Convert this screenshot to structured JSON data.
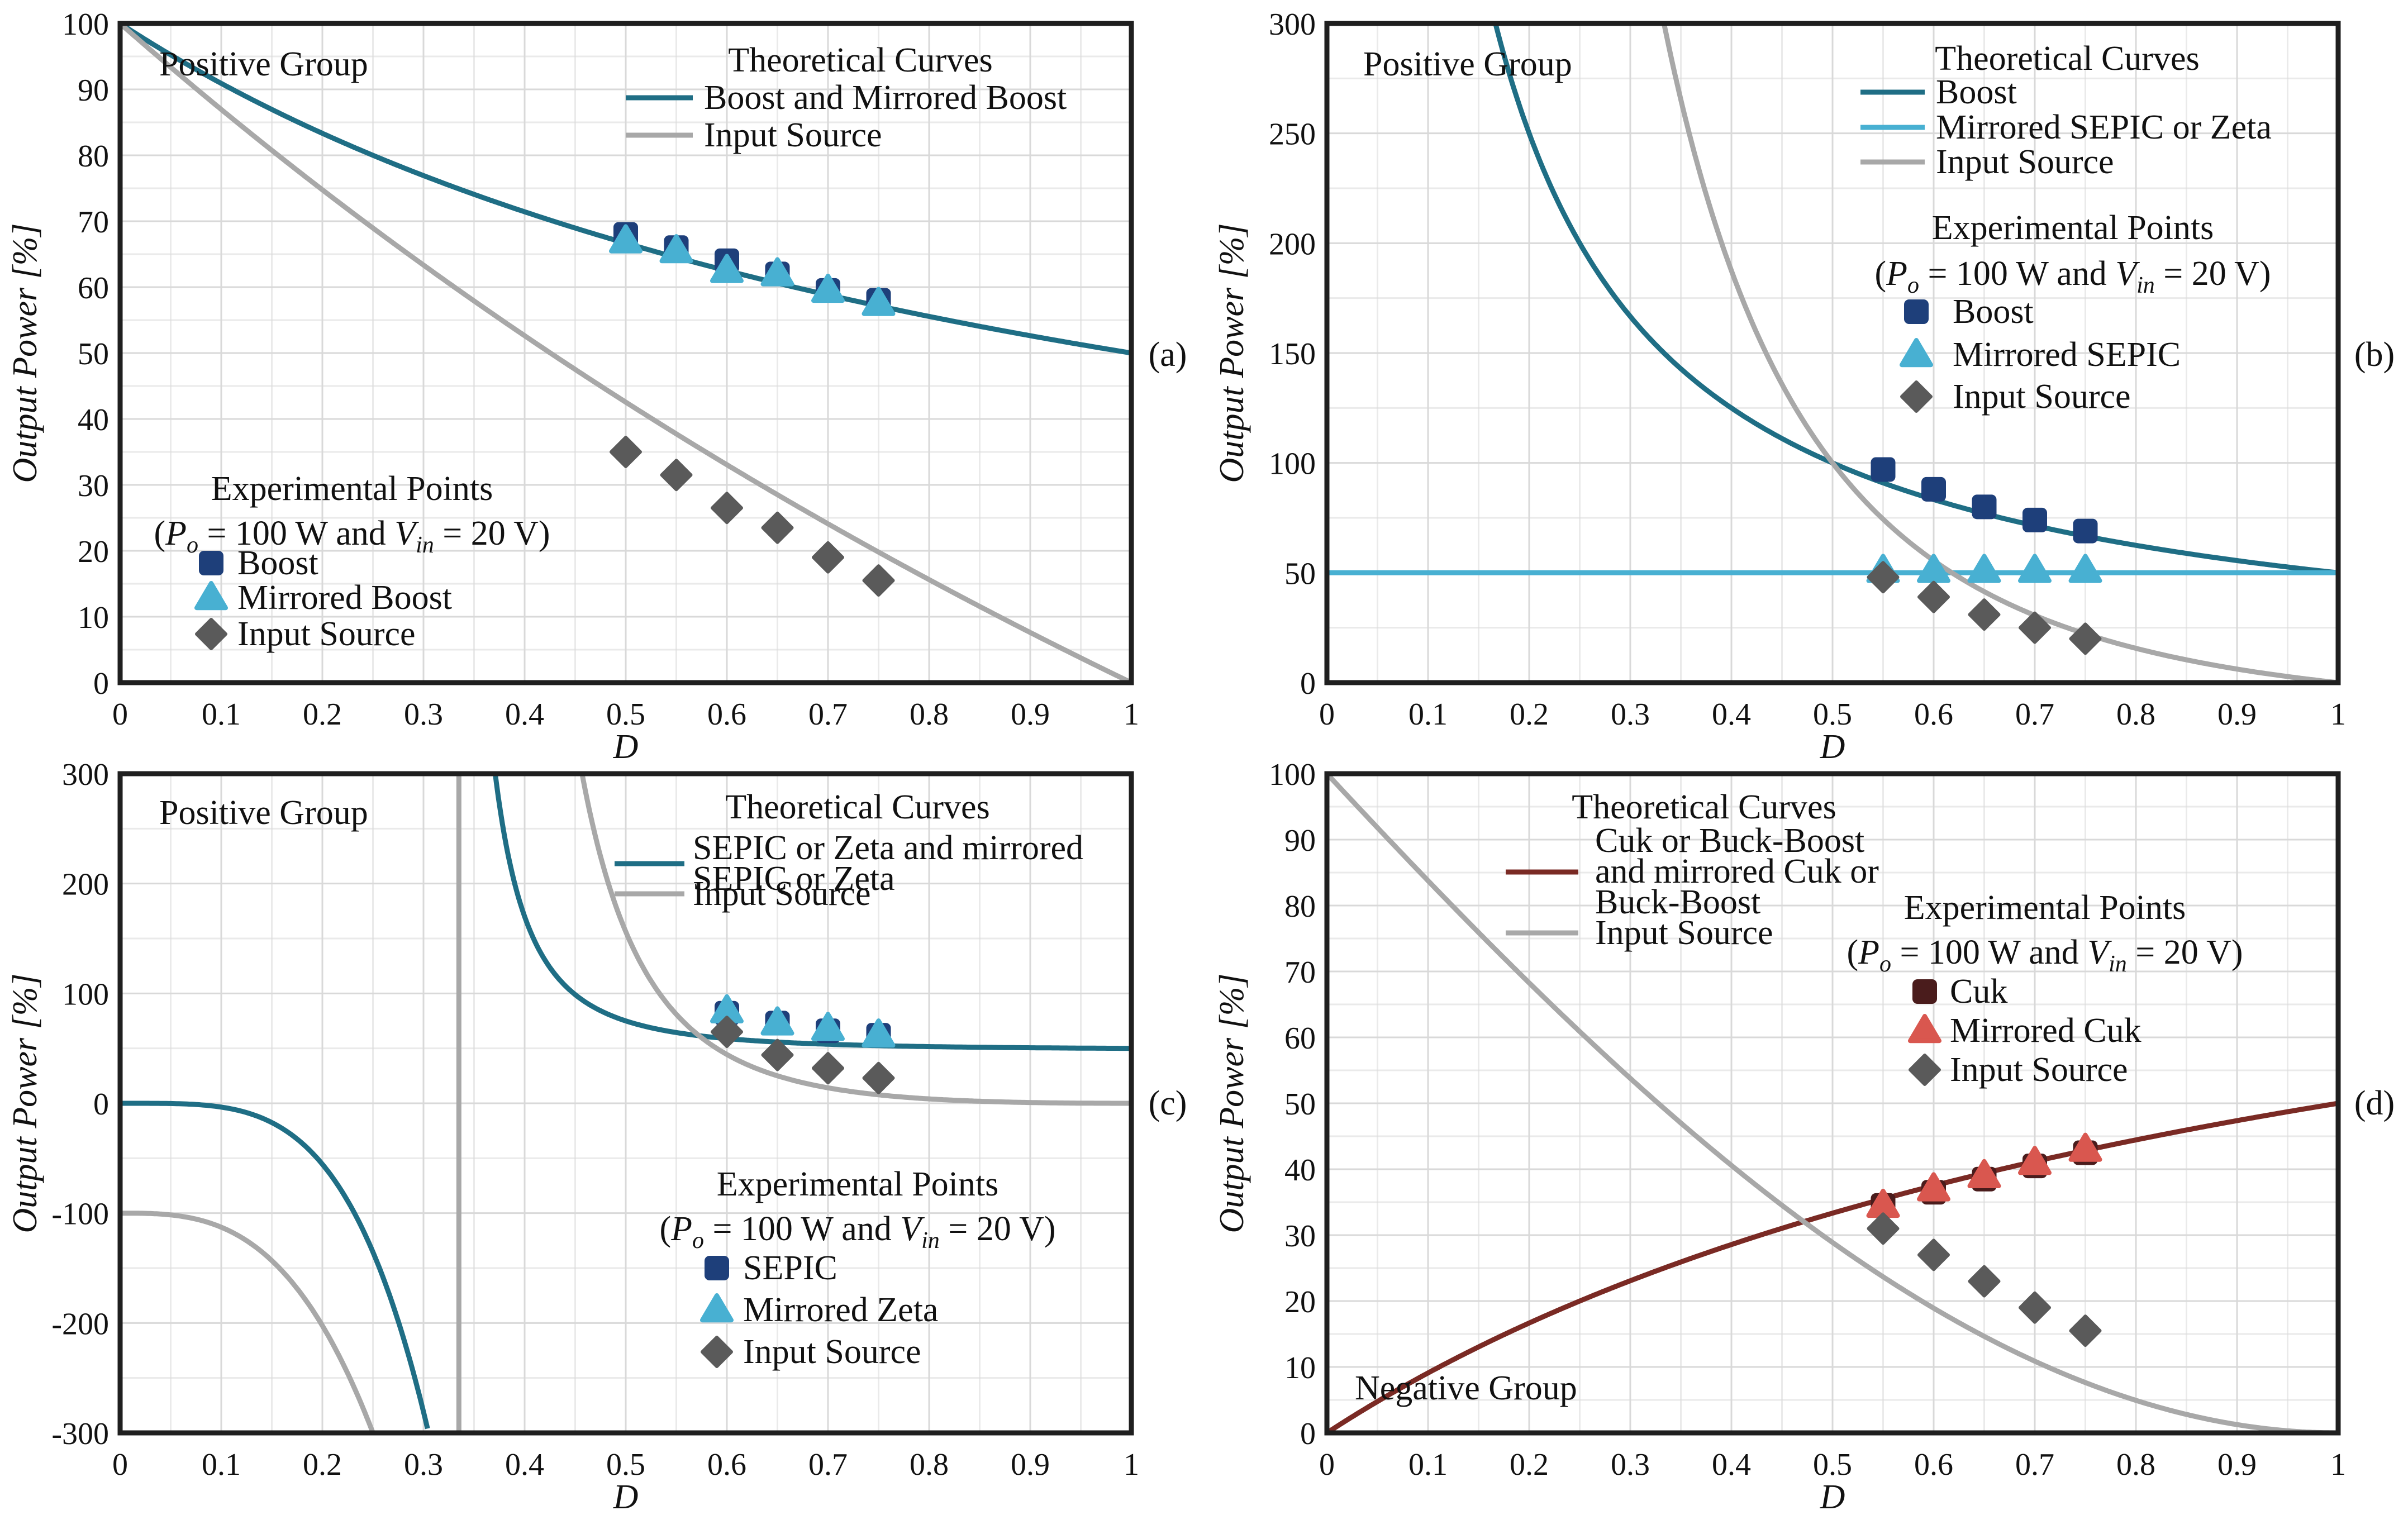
{
  "colors": {
    "boost_teal": "#1f6e85",
    "light_blue": "#48b0d2",
    "gray_curve": "#a8a8a8",
    "navy_marker": "#1e3f7a",
    "diamond_gray": "#5a5a5a",
    "cuk_red": "#7a2a24",
    "cuk_dark": "#4a1c1c",
    "mirrored_cuk": "#d9574f"
  },
  "chart_data": [
    {
      "id": "a",
      "type": "line",
      "panel_label": "(a)",
      "corner_label": "Positive Group",
      "xlabel": "D",
      "ylabel": "Output Power [%]",
      "xlim": [
        0,
        1
      ],
      "ylim": [
        0,
        100
      ],
      "xticks": [
        0,
        0.1,
        0.2,
        0.3,
        0.4,
        0.5,
        0.6,
        0.7,
        0.8,
        0.9,
        1
      ],
      "xtick_labels": [
        "0",
        "0.1",
        "0.2",
        "0.3",
        "0.4",
        "0.5",
        "0.6",
        "0.7",
        "0.8",
        "0.9",
        "1"
      ],
      "yticks": [
        0,
        10,
        20,
        30,
        40,
        50,
        60,
        70,
        80,
        90,
        100
      ],
      "ytick_labels": [
        "0",
        "10",
        "20",
        "30",
        "40",
        "50",
        "60",
        "70",
        "80",
        "90",
        "100"
      ],
      "theory_title": "Theoretical Curves",
      "curves": [
        {
          "name": "Boost and Mirrored Boost",
          "color": "#1f6e85",
          "formula": "boost"
        },
        {
          "name": "Input Source",
          "color": "#a8a8a8",
          "formula": "input_boost"
        }
      ],
      "exp_title": "Experimental Points",
      "exp_condition": {
        "prefix": "(P",
        "po_sub": "o",
        "mid": " = 100 W and V",
        "vin_sub": "in",
        "suffix": " = 20 V)"
      },
      "points": [
        {
          "name": "Boost",
          "marker": "square",
          "color": "#1e3f7a",
          "x": [
            0.5,
            0.55,
            0.6,
            0.65,
            0.7,
            0.75
          ],
          "y": [
            68,
            66,
            64,
            62,
            59.5,
            58
          ]
        },
        {
          "name": "Mirrored Boost",
          "marker": "triangle",
          "color": "#48b0d2",
          "x": [
            0.5,
            0.55,
            0.6,
            0.65,
            0.7,
            0.75
          ],
          "y": [
            67,
            65.5,
            62.5,
            62,
            59.5,
            57.5
          ]
        },
        {
          "name": "Input Source",
          "marker": "diamond",
          "color": "#5a5a5a",
          "x": [
            0.5,
            0.55,
            0.6,
            0.65,
            0.7,
            0.75
          ],
          "y": [
            35,
            31.5,
            26.5,
            23.5,
            19,
            15.5
          ]
        }
      ]
    },
    {
      "id": "b",
      "type": "line",
      "panel_label": "(b)",
      "corner_label": "Positive Group",
      "xlabel": "D",
      "ylabel": "Output Power [%]",
      "xlim": [
        0,
        1
      ],
      "ylim": [
        0,
        300
      ],
      "xticks": [
        0,
        0.1,
        0.2,
        0.3,
        0.4,
        0.5,
        0.6,
        0.7,
        0.8,
        0.9,
        1
      ],
      "xtick_labels": [
        "0",
        "0.1",
        "0.2",
        "0.3",
        "0.4",
        "0.5",
        "0.6",
        "0.7",
        "0.8",
        "0.9",
        "1"
      ],
      "yticks": [
        0,
        50,
        100,
        150,
        200,
        250,
        300
      ],
      "ytick_labels": [
        "0",
        "50",
        "100",
        "150",
        "200",
        "250",
        "300"
      ],
      "theory_title": "Theoretical Curves",
      "curves": [
        {
          "name": "Boost",
          "color": "#1f6e85",
          "formula": "boost_b"
        },
        {
          "name": "Mirrored SEPIC or Zeta",
          "color": "#48b0d2",
          "formula": "const50"
        },
        {
          "name": "Input Source",
          "color": "#a8a8a8",
          "formula": "input_b"
        }
      ],
      "exp_title": "Experimental Points",
      "exp_condition": {
        "prefix": "(P",
        "po_sub": "o",
        "mid": " = 100 W and V",
        "vin_sub": "in",
        "suffix": " = 20 V)"
      },
      "points": [
        {
          "name": "Boost",
          "marker": "square",
          "color": "#1e3f7a",
          "x": [
            0.55,
            0.6,
            0.65,
            0.7,
            0.75
          ],
          "y": [
            97,
            88,
            80,
            74,
            69
          ]
        },
        {
          "name": "Mirrored SEPIC",
          "marker": "triangle",
          "color": "#48b0d2",
          "x": [
            0.55,
            0.6,
            0.65,
            0.7,
            0.75
          ],
          "y": [
            51,
            51,
            51,
            51,
            51
          ]
        },
        {
          "name": "Input Source",
          "marker": "diamond",
          "color": "#5a5a5a",
          "x": [
            0.55,
            0.6,
            0.65,
            0.7,
            0.75
          ],
          "y": [
            48,
            39,
            31,
            25,
            20
          ]
        }
      ]
    },
    {
      "id": "c",
      "type": "line",
      "panel_label": "(c)",
      "corner_label": "Positive Group",
      "xlabel": "D",
      "ylabel": "Output Power [%]",
      "xlim": [
        0,
        1
      ],
      "ylim": [
        -300,
        300
      ],
      "xticks": [
        0,
        0.1,
        0.2,
        0.3,
        0.4,
        0.5,
        0.6,
        0.7,
        0.8,
        0.9,
        1
      ],
      "xtick_labels": [
        "0",
        "0.1",
        "0.2",
        "0.3",
        "0.4",
        "0.5",
        "0.6",
        "0.7",
        "0.8",
        "0.9",
        "1"
      ],
      "yticks": [
        -300,
        -200,
        -100,
        0,
        100,
        200,
        300
      ],
      "ytick_labels": [
        "-300",
        "-200",
        "-100",
        "0",
        "100",
        "200",
        "300"
      ],
      "theory_title": "Theoretical Curves",
      "curves": [
        {
          "name_lines": [
            "SEPIC or Zeta and mirrored",
            "SEPIC or Zeta"
          ],
          "color": "#1f6e85",
          "formula": "sepic"
        },
        {
          "name": "Input Source",
          "color": "#a8a8a8",
          "formula": "input_sepic"
        }
      ],
      "exp_title": "Experimental Points",
      "exp_condition": {
        "prefix": "(P",
        "po_sub": "o",
        "mid": " = 100 W and V",
        "vin_sub": "in",
        "suffix": " = 20 V)"
      },
      "points": [
        {
          "name": "SEPIC",
          "marker": "square",
          "color": "#1e3f7a",
          "x": [
            0.6,
            0.65,
            0.7,
            0.75
          ],
          "y": [
            82,
            73,
            66,
            62
          ]
        },
        {
          "name": "Mirrored Zeta",
          "marker": "triangle",
          "color": "#48b0d2",
          "x": [
            0.6,
            0.65,
            0.7,
            0.75
          ],
          "y": [
            84,
            73,
            68,
            62
          ]
        },
        {
          "name": "Input Source",
          "marker": "diamond",
          "color": "#5a5a5a",
          "x": [
            0.6,
            0.65,
            0.7,
            0.75
          ],
          "y": [
            65,
            44,
            32,
            23
          ]
        }
      ]
    },
    {
      "id": "d",
      "type": "line",
      "panel_label": "(d)",
      "corner_label": "Negative Group",
      "xlabel": "D",
      "ylabel": "Output Power [%]",
      "xlim": [
        0,
        1
      ],
      "ylim": [
        0,
        100
      ],
      "xticks": [
        0,
        0.1,
        0.2,
        0.3,
        0.4,
        0.5,
        0.6,
        0.7,
        0.8,
        0.9,
        1
      ],
      "xtick_labels": [
        "0",
        "0.1",
        "0.2",
        "0.3",
        "0.4",
        "0.5",
        "0.6",
        "0.7",
        "0.8",
        "0.9",
        "1"
      ],
      "yticks": [
        0,
        10,
        20,
        30,
        40,
        50,
        60,
        70,
        80,
        90,
        100
      ],
      "ytick_labels": [
        "0",
        "10",
        "20",
        "30",
        "40",
        "50",
        "60",
        "70",
        "80",
        "90",
        "100"
      ],
      "theory_title": "Theoretical Curves",
      "curves": [
        {
          "name_lines": [
            "Cuk or Buck-Boost",
            "and mirrored Cuk or",
            "Buck-Boost"
          ],
          "color": "#7a2a24",
          "formula": "cuk"
        },
        {
          "name": "Input Source",
          "color": "#a8a8a8",
          "formula": "input_cuk"
        }
      ],
      "exp_title": "Experimental Points",
      "exp_condition": {
        "prefix": "(P",
        "po_sub": "o",
        "mid": " = 100 W and V",
        "vin_sub": "in",
        "suffix": " = 20 V)"
      },
      "points": [
        {
          "name": "Cuk",
          "marker": "square",
          "color": "#4a1c1c",
          "x": [
            0.55,
            0.6,
            0.65,
            0.7,
            0.75
          ],
          "y": [
            34.5,
            36.5,
            38.5,
            40.5,
            42.5
          ]
        },
        {
          "name": "Mirrored Cuk",
          "marker": "triangle",
          "color": "#d9574f",
          "x": [
            0.55,
            0.6,
            0.65,
            0.7,
            0.75
          ],
          "y": [
            34.5,
            37,
            39,
            41,
            43
          ]
        },
        {
          "name": "Input Source",
          "marker": "diamond",
          "color": "#5a5a5a",
          "x": [
            0.55,
            0.6,
            0.65,
            0.7,
            0.75
          ],
          "y": [
            31,
            27,
            23,
            19,
            15.5
          ]
        }
      ]
    }
  ]
}
